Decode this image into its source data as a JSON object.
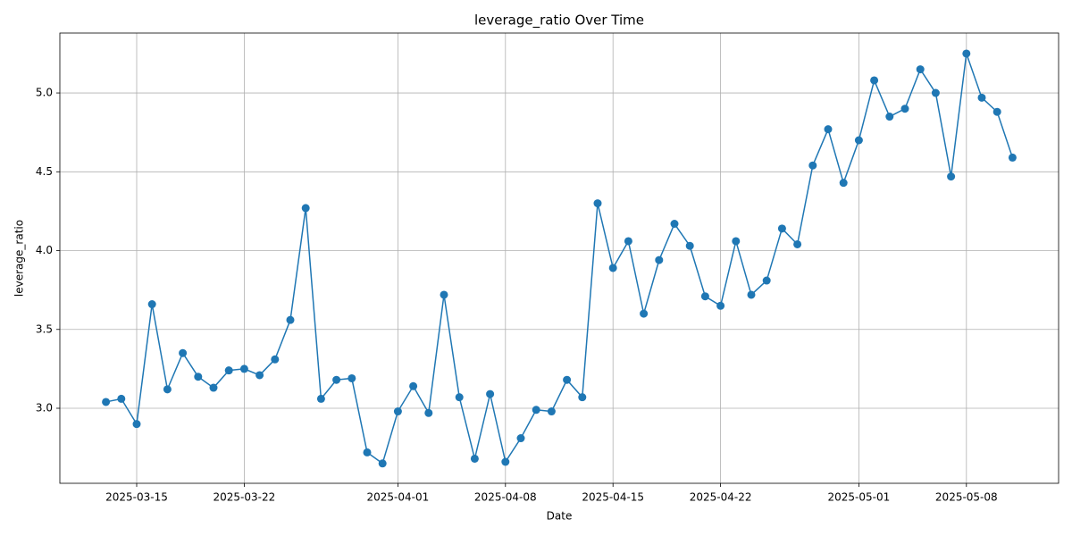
{
  "chart_data": {
    "type": "line",
    "title": "leverage_ratio Over Time",
    "xlabel": "Date",
    "ylabel": "leverage_ratio",
    "x": [
      "2025-03-13",
      "2025-03-14",
      "2025-03-15",
      "2025-03-16",
      "2025-03-17",
      "2025-03-18",
      "2025-03-19",
      "2025-03-20",
      "2025-03-21",
      "2025-03-22",
      "2025-03-23",
      "2025-03-24",
      "2025-03-25",
      "2025-03-26",
      "2025-03-27",
      "2025-03-28",
      "2025-03-29",
      "2025-03-30",
      "2025-03-31",
      "2025-04-01",
      "2025-04-02",
      "2025-04-03",
      "2025-04-04",
      "2025-04-05",
      "2025-04-06",
      "2025-04-07",
      "2025-04-08",
      "2025-04-09",
      "2025-04-10",
      "2025-04-11",
      "2025-04-12",
      "2025-04-13",
      "2025-04-14",
      "2025-04-15",
      "2025-04-16",
      "2025-04-17",
      "2025-04-18",
      "2025-04-19",
      "2025-04-20",
      "2025-04-21",
      "2025-04-22",
      "2025-04-23",
      "2025-04-24",
      "2025-04-25",
      "2025-04-26",
      "2025-04-27",
      "2025-04-28",
      "2025-04-29",
      "2025-04-30",
      "2025-05-01",
      "2025-05-02",
      "2025-05-03",
      "2025-05-04",
      "2025-05-05",
      "2025-05-06",
      "2025-05-07",
      "2025-05-08",
      "2025-05-09",
      "2025-05-10",
      "2025-05-11"
    ],
    "series": [
      {
        "name": "leverage_ratio",
        "color": "#1f77b4",
        "values": [
          3.04,
          3.06,
          2.9,
          3.66,
          3.12,
          3.35,
          3.2,
          3.13,
          3.24,
          3.25,
          3.21,
          3.31,
          3.56,
          4.27,
          3.06,
          3.18,
          3.19,
          2.72,
          2.65,
          2.98,
          3.14,
          2.97,
          3.72,
          3.07,
          2.68,
          3.09,
          2.66,
          2.81,
          2.99,
          2.98,
          3.18,
          3.07,
          4.3,
          3.89,
          4.06,
          3.6,
          3.94,
          4.17,
          4.03,
          3.71,
          3.65,
          4.06,
          3.72,
          3.81,
          4.14,
          4.04,
          4.54,
          4.77,
          4.43,
          4.7,
          5.08,
          4.85,
          4.9,
          5.15,
          5.0,
          4.47,
          5.25,
          4.97,
          4.88,
          4.59
        ]
      }
    ],
    "xlim": [
      "2025-03-10",
      "2025-05-14"
    ],
    "xticks": [
      "2025-03-15",
      "2025-03-22",
      "2025-04-01",
      "2025-04-08",
      "2025-04-15",
      "2025-04-22",
      "2025-05-01",
      "2025-05-08"
    ],
    "ylim": [
      2.524,
      5.38
    ],
    "yticks": [
      {
        "value": 3,
        "label": "3.0"
      },
      3.5,
      {
        "value": 4,
        "label": "4.0"
      },
      4.5,
      {
        "value": 5,
        "label": "5.0"
      }
    ],
    "grid": true
  }
}
